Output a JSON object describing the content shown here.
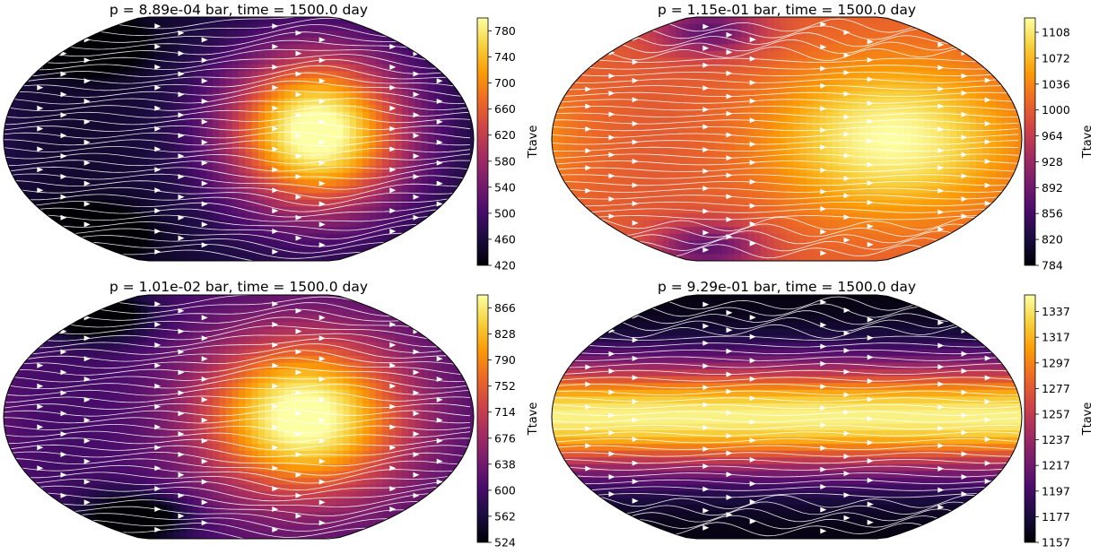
{
  "colormap_stops": [
    "#000004",
    "#1b0c41",
    "#4a0c6b",
    "#781c6d",
    "#a52c60",
    "#cf4446",
    "#ed6925",
    "#fb9b06",
    "#f7d13d",
    "#fcffa4"
  ],
  "stream_color": "#ffffff",
  "chart_data": [
    {
      "type": "heatmap",
      "title": "p = 8.89e-04 bar, time = 1500.0 day",
      "colorbar_label": "Ttave",
      "vmin": 420,
      "vmax": 800,
      "colorbar_ticks": [
        "420",
        "460",
        "500",
        "540",
        "580",
        "620",
        "660",
        "700",
        "740",
        "780"
      ],
      "pattern": "hotspot",
      "field": {
        "hot_lon": 60,
        "hot_lat": 5,
        "base": 0.08,
        "amp": 0.98,
        "lon_width": 70,
        "lat_width": 60,
        "cold_patches": [
          [
            -120,
            70
          ],
          [
            -120,
            -70
          ]
        ]
      }
    },
    {
      "type": "heatmap",
      "title": "p = 1.15e-01 bar, time = 1500.0 day",
      "colorbar_label": "Ttave",
      "vmin": 784,
      "vmax": 1128,
      "colorbar_ticks": [
        "784",
        "820",
        "856",
        "892",
        "928",
        "964",
        "1000",
        "1036",
        "1072",
        "1108"
      ],
      "pattern": "banded",
      "field": {
        "hot_lon": 80,
        "hot_lat": 0,
        "base": 0.62,
        "amp": 0.38,
        "lon_width": 90,
        "lat_width": 55,
        "cold_patches": [
          [
            -60,
            80
          ],
          [
            -60,
            -80
          ]
        ]
      }
    },
    {
      "type": "heatmap",
      "title": "p = 1.01e-02 bar, time = 1500.0 day",
      "colorbar_label": "Ttave",
      "vmin": 524,
      "vmax": 885,
      "colorbar_ticks": [
        "524",
        "562",
        "600",
        "638",
        "676",
        "714",
        "752",
        "790",
        "828",
        "866"
      ],
      "pattern": "hotspot",
      "field": {
        "hot_lon": 50,
        "hot_lat": 0,
        "base": 0.2,
        "amp": 0.85,
        "lon_width": 80,
        "lat_width": 60,
        "cold_patches": [
          [
            -110,
            75
          ],
          [
            -80,
            -75
          ]
        ]
      }
    },
    {
      "type": "heatmap",
      "title": "p = 9.29e-01 bar, time = 1500.0 day",
      "colorbar_label": "Ttave",
      "vmin": 1157,
      "vmax": 1350,
      "colorbar_ticks": [
        "1157",
        "1177",
        "1197",
        "1217",
        "1237",
        "1257",
        "1277",
        "1297",
        "1317",
        "1337"
      ],
      "pattern": "zonal",
      "field": {
        "hot_lon": 0,
        "hot_lat": 0,
        "base": 0.02,
        "amp": 0.95,
        "lon_width": 999,
        "lat_width": 40,
        "cold_patches": []
      }
    }
  ]
}
